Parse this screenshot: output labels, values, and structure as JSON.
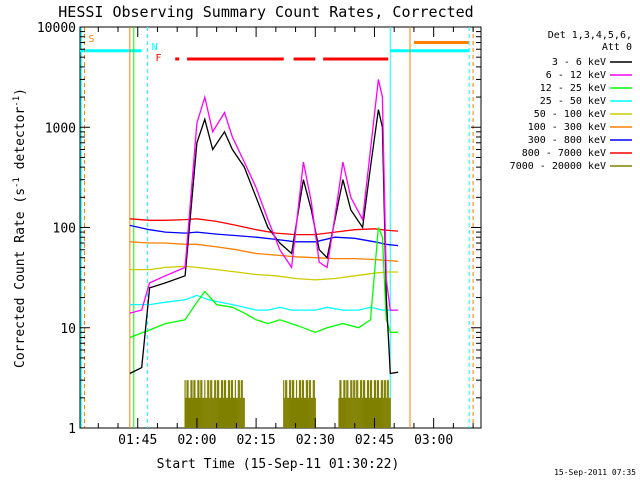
{
  "chart_data": {
    "type": "line",
    "title": "HESSI Observing Summary Count Rates, Corrected",
    "xlabel": "Start Time (15-Sep-11 01:30:22)",
    "ylabel": "Corrected Count Rate (s",
    "ylabel_sup": "-1",
    "ylabel_mid": " detector",
    "ylabel_end": ")",
    "footer": "15-Sep-2011 07:35",
    "xlim": [
      "01:30:22",
      "03:12:00"
    ],
    "ylim": [
      1,
      10000
    ],
    "yscale": "log",
    "x_ticks": [
      "01:45",
      "02:00",
      "02:15",
      "02:30",
      "02:45",
      "03:00"
    ],
    "y_ticks": [
      "1",
      "10",
      "100",
      "1000",
      "10000"
    ],
    "legend_title": [
      "Det 1,3,4,5,6,",
      "Att 0"
    ],
    "legend_position": "right",
    "markers": [
      {
        "label": "S",
        "time": "01:31:30",
        "color": "#ff7f00",
        "style": "dashed"
      },
      {
        "label": "N",
        "time": "01:47:30",
        "color": "#00ffff",
        "style": "dashed"
      },
      {
        "label": "F",
        "time": "01:48:30",
        "color": "#ff0000",
        "style": "text"
      }
    ],
    "flare_flag": {
      "color": "#ff0000",
      "y": 4800,
      "segments": [
        [
          "01:54:30",
          "01:55:30"
        ],
        [
          "01:57:30",
          "02:22:00"
        ],
        [
          "02:24:30",
          "02:30:00"
        ],
        [
          "02:32:00",
          "02:48:30"
        ]
      ]
    },
    "night_lines": {
      "color": "#00ffff",
      "level": 5800,
      "segments": [
        [
          "01:30:22",
          "01:46:00"
        ],
        [
          "02:49:00",
          "03:09:00"
        ]
      ]
    },
    "saa_bar": {
      "color": "#ff7f00",
      "level": 7000,
      "start": "02:55:00",
      "end": "03:09:00"
    },
    "series": [
      {
        "name": "3 - 6 keV",
        "color": "#000000",
        "points": [
          [
            "01:43",
            "3.5"
          ],
          [
            "01:46",
            "4"
          ],
          [
            "01:48",
            "25"
          ],
          [
            "01:52",
            "28"
          ],
          [
            "01:57",
            "33"
          ],
          [
            "02:00",
            "700"
          ],
          [
            "02:02",
            "1200"
          ],
          [
            "02:04",
            "600"
          ],
          [
            "02:07",
            "900"
          ],
          [
            "02:09",
            "600"
          ],
          [
            "02:12",
            "400"
          ],
          [
            "02:15",
            "200"
          ],
          [
            "02:18",
            "100"
          ],
          [
            "02:21",
            "70"
          ],
          [
            "02:24",
            "55"
          ],
          [
            "02:27",
            "300"
          ],
          [
            "02:29",
            "150"
          ],
          [
            "02:31",
            "60"
          ],
          [
            "02:33",
            "50"
          ],
          [
            "02:35",
            "120"
          ],
          [
            "02:37",
            "300"
          ],
          [
            "02:39",
            "150"
          ],
          [
            "02:42",
            "100"
          ],
          [
            "02:44",
            "400"
          ],
          [
            "02:46",
            "1500"
          ],
          [
            "02:47",
            "1000"
          ],
          [
            "02:48",
            "20"
          ],
          [
            "02:49",
            "3.5"
          ],
          [
            "02:51",
            "3.6"
          ]
        ]
      },
      {
        "name": "6 - 12 keV",
        "color": "#ff00ff",
        "points": [
          [
            "01:43",
            "14"
          ],
          [
            "01:46",
            "15"
          ],
          [
            "01:48",
            "28"
          ],
          [
            "01:52",
            "33"
          ],
          [
            "01:57",
            "40"
          ],
          [
            "02:00",
            "1100"
          ],
          [
            "02:02",
            "2000"
          ],
          [
            "02:04",
            "900"
          ],
          [
            "02:07",
            "1400"
          ],
          [
            "02:09",
            "800"
          ],
          [
            "02:12",
            "450"
          ],
          [
            "02:15",
            "250"
          ],
          [
            "02:18",
            "120"
          ],
          [
            "02:21",
            "60"
          ],
          [
            "02:24",
            "40"
          ],
          [
            "02:27",
            "450"
          ],
          [
            "02:29",
            "180"
          ],
          [
            "02:31",
            "45"
          ],
          [
            "02:33",
            "40"
          ],
          [
            "02:35",
            "130"
          ],
          [
            "02:37",
            "450"
          ],
          [
            "02:39",
            "200"
          ],
          [
            "02:42",
            "120"
          ],
          [
            "02:44",
            "600"
          ],
          [
            "02:46",
            "3000"
          ],
          [
            "02:47",
            "2000"
          ],
          [
            "02:48",
            "30"
          ],
          [
            "02:49",
            "15"
          ],
          [
            "02:51",
            "15"
          ]
        ]
      },
      {
        "name": "12 - 25 keV",
        "color": "#00ff00",
        "points": [
          [
            "01:43",
            "8"
          ],
          [
            "01:48",
            "9.5"
          ],
          [
            "01:52",
            "11"
          ],
          [
            "01:57",
            "12"
          ],
          [
            "02:00",
            "18"
          ],
          [
            "02:02",
            "23"
          ],
          [
            "02:05",
            "17"
          ],
          [
            "02:09",
            "16"
          ],
          [
            "02:12",
            "14"
          ],
          [
            "02:15",
            "12"
          ],
          [
            "02:18",
            "11"
          ],
          [
            "02:21",
            "12"
          ],
          [
            "02:24",
            "11"
          ],
          [
            "02:27",
            "10"
          ],
          [
            "02:30",
            "9"
          ],
          [
            "02:33",
            "10"
          ],
          [
            "02:37",
            "11"
          ],
          [
            "02:41",
            "10"
          ],
          [
            "02:44",
            "12"
          ],
          [
            "02:46",
            "100"
          ],
          [
            "02:47",
            "80"
          ],
          [
            "02:48",
            "12"
          ],
          [
            "02:49",
            "9"
          ],
          [
            "02:51",
            "9"
          ]
        ]
      },
      {
        "name": "25 - 50 keV",
        "color": "#00ffff",
        "points": [
          [
            "01:43",
            "17"
          ],
          [
            "01:48",
            "17"
          ],
          [
            "01:52",
            "18"
          ],
          [
            "01:57",
            "19"
          ],
          [
            "02:00",
            "21"
          ],
          [
            "02:03",
            "19"
          ],
          [
            "02:06",
            "18"
          ],
          [
            "02:09",
            "17"
          ],
          [
            "02:12",
            "16"
          ],
          [
            "02:15",
            "15"
          ],
          [
            "02:18",
            "15"
          ],
          [
            "02:21",
            "16"
          ],
          [
            "02:24",
            "15"
          ],
          [
            "02:27",
            "15"
          ],
          [
            "02:30",
            "15"
          ],
          [
            "02:33",
            "16"
          ],
          [
            "02:37",
            "15"
          ],
          [
            "02:41",
            "15"
          ],
          [
            "02:44",
            "16"
          ],
          [
            "02:47",
            "15"
          ],
          [
            "02:49",
            "15"
          ],
          [
            "02:51",
            "15"
          ]
        ]
      },
      {
        "name": "50 - 100 keV",
        "color": "#cccc00",
        "points": [
          [
            "01:43",
            "38"
          ],
          [
            "01:48",
            "38"
          ],
          [
            "01:52",
            "40"
          ],
          [
            "01:57",
            "41"
          ],
          [
            "02:00",
            "40"
          ],
          [
            "02:05",
            "38"
          ],
          [
            "02:10",
            "36"
          ],
          [
            "02:15",
            "34"
          ],
          [
            "02:20",
            "33"
          ],
          [
            "02:25",
            "31"
          ],
          [
            "02:30",
            "30"
          ],
          [
            "02:35",
            "31"
          ],
          [
            "02:40",
            "33"
          ],
          [
            "02:45",
            "35"
          ],
          [
            "02:48",
            "36"
          ],
          [
            "02:51",
            "36"
          ]
        ]
      },
      {
        "name": "100 - 300 keV",
        "color": "#ff7f00",
        "points": [
          [
            "01:43",
            "72"
          ],
          [
            "01:48",
            "70"
          ],
          [
            "01:52",
            "70"
          ],
          [
            "01:57",
            "68"
          ],
          [
            "02:00",
            "68"
          ],
          [
            "02:05",
            "64"
          ],
          [
            "02:10",
            "60"
          ],
          [
            "02:15",
            "55"
          ],
          [
            "02:20",
            "53"
          ],
          [
            "02:25",
            "51"
          ],
          [
            "02:30",
            "50"
          ],
          [
            "02:35",
            "49"
          ],
          [
            "02:40",
            "49"
          ],
          [
            "02:45",
            "48"
          ],
          [
            "02:48",
            "47"
          ],
          [
            "02:51",
            "46"
          ]
        ]
      },
      {
        "name": "300 - 800 keV",
        "color": "#0000ff",
        "points": [
          [
            "01:43",
            "105"
          ],
          [
            "01:48",
            "95"
          ],
          [
            "01:52",
            "90"
          ],
          [
            "01:57",
            "88"
          ],
          [
            "02:00",
            "90"
          ],
          [
            "02:05",
            "86"
          ],
          [
            "02:10",
            "83"
          ],
          [
            "02:15",
            "80"
          ],
          [
            "02:20",
            "76"
          ],
          [
            "02:25",
            "72"
          ],
          [
            "02:30",
            "72"
          ],
          [
            "02:35",
            "80"
          ],
          [
            "02:40",
            "78"
          ],
          [
            "02:45",
            "72"
          ],
          [
            "02:48",
            "68"
          ],
          [
            "02:51",
            "66"
          ]
        ]
      },
      {
        "name": "800 - 7000 keV",
        "color": "#ff0000",
        "points": [
          [
            "01:43",
            "122"
          ],
          [
            "01:48",
            "118"
          ],
          [
            "01:52",
            "118"
          ],
          [
            "01:57",
            "120"
          ],
          [
            "02:00",
            "122"
          ],
          [
            "02:05",
            "115"
          ],
          [
            "02:10",
            "105"
          ],
          [
            "02:15",
            "95"
          ],
          [
            "02:20",
            "88"
          ],
          [
            "02:25",
            "85"
          ],
          [
            "02:30",
            "85"
          ],
          [
            "02:35",
            "90"
          ],
          [
            "02:40",
            "95"
          ],
          [
            "02:45",
            "97"
          ],
          [
            "02:48",
            "94"
          ],
          [
            "02:51",
            "92"
          ]
        ]
      },
      {
        "name": "7000 - 20000 keV",
        "color": "#808000",
        "points": [
          [
            "01:57",
            "2"
          ],
          [
            "02:12",
            "2"
          ],
          [
            "02:28",
            "2"
          ],
          [
            "02:46",
            "2"
          ]
        ]
      }
    ],
    "legend": [
      {
        "label": "3 - 6 keV",
        "color": "#000000"
      },
      {
        "label": "6 - 12 keV",
        "color": "#ff00ff"
      },
      {
        "label": "12 - 25 keV",
        "color": "#00ff00"
      },
      {
        "label": "25 - 50 keV",
        "color": "#00ffff"
      },
      {
        "label": "50 - 100 keV",
        "color": "#cccc00"
      },
      {
        "label": "100 - 300 keV",
        "color": "#ff7f00"
      },
      {
        "label": "300 - 800 keV",
        "color": "#0000ff"
      },
      {
        "label": "800 - 7000 keV",
        "color": "#ff0000"
      },
      {
        "label": "7000 - 20000 keV",
        "color": "#808000"
      }
    ]
  }
}
